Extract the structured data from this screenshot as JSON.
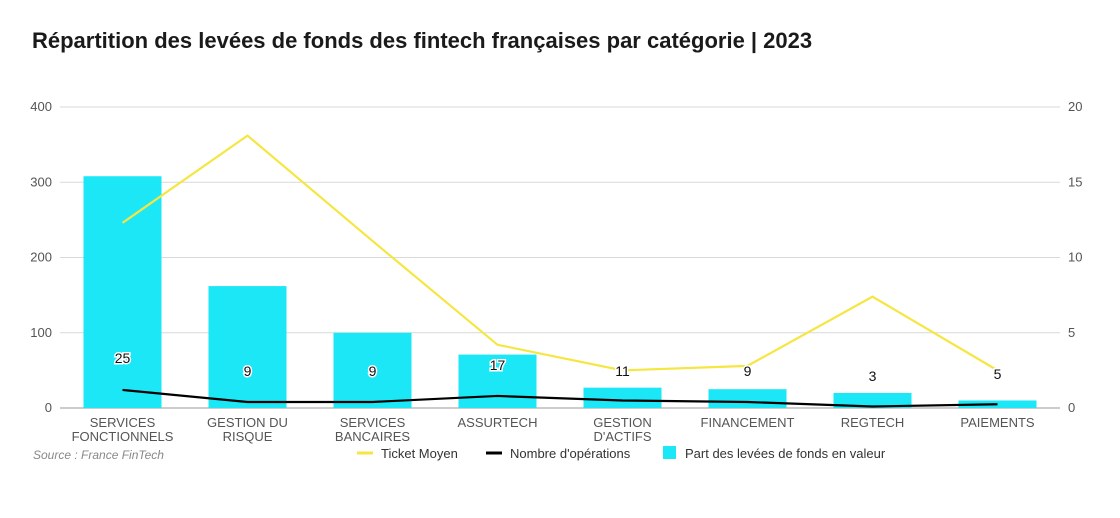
{
  "title": "Répartition des levées de fonds des fintech françaises par catégorie | 2023",
  "source": "Source : France FinTech",
  "colors": {
    "bars": "#1be7f7",
    "ticket_line": "#f5e642",
    "ops_line": "#000000",
    "grid": "#d9d9d9"
  },
  "chart_data": {
    "type": "bar",
    "categories": [
      [
        "SERVICES",
        "FONCTIONNELS"
      ],
      [
        "GESTION DU",
        "RISQUE"
      ],
      [
        "SERVICES",
        "BANCAIRES"
      ],
      [
        "ASSURTECH"
      ],
      [
        "GESTION",
        "D'ACTIFS"
      ],
      [
        "FINANCEMENT"
      ],
      [
        "REGTECH"
      ],
      [
        "PAIEMENTS"
      ]
    ],
    "left_axis": {
      "ticks": [
        0,
        100,
        200,
        300,
        400
      ],
      "ylim": [
        0,
        400
      ]
    },
    "right_axis": {
      "ticks": [
        0,
        5,
        10,
        15,
        20
      ],
      "ylim": [
        0,
        20
      ]
    },
    "series": [
      {
        "name": "Part des levées de fonds en valeur",
        "type": "bar",
        "axis": "left",
        "values": [
          308,
          162,
          100,
          71,
          27,
          25,
          20,
          10
        ]
      },
      {
        "name": "Ticket Moyen",
        "type": "line",
        "axis": "right",
        "values": [
          12.3,
          18.1,
          11.1,
          4.2,
          2.5,
          2.8,
          7.4,
          2.5
        ]
      },
      {
        "name": "Nombre d'opérations",
        "type": "line",
        "axis": "right",
        "values": [
          1.2,
          0.4,
          0.4,
          0.8,
          0.5,
          0.4,
          0.1,
          0.25
        ],
        "labels": [
          "25",
          "9",
          "9",
          "17",
          "11",
          "9",
          "3",
          "5"
        ]
      }
    ],
    "legend": {
      "position": "bottom",
      "order": [
        "Ticket Moyen",
        "Nombre d'opérations",
        "Part des levées de fonds en valeur"
      ]
    },
    "grid": true
  }
}
